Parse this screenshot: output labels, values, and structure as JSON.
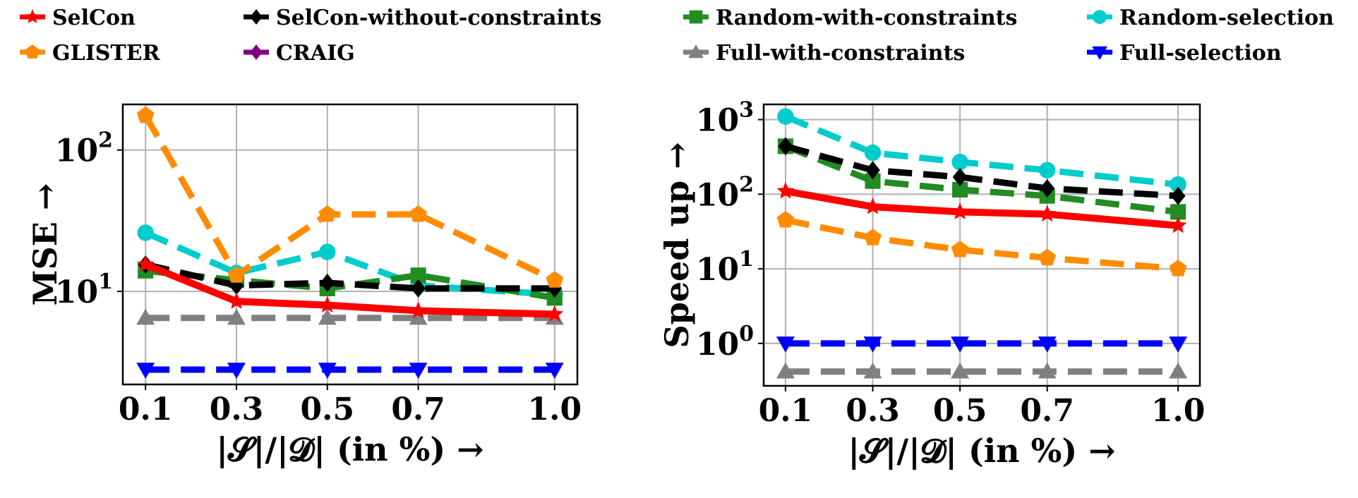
{
  "legend": [
    {
      "key": "selcon",
      "label": "SelCon",
      "color": "#ff0000",
      "marker": "star",
      "dash": "solid"
    },
    {
      "key": "selcon_nc",
      "label": "SelCon-without-constraints",
      "color": "#000000",
      "marker": "diamond",
      "dash": "dashed"
    },
    {
      "key": "random_c",
      "label": "Random-with-constraints",
      "color": "#228b22",
      "marker": "square",
      "dash": "dashed"
    },
    {
      "key": "random",
      "label": "Random-selection",
      "color": "#00cccc",
      "marker": "circle",
      "dash": "dashed"
    },
    {
      "key": "glister",
      "label": "GLISTER",
      "color": "#ff8c00",
      "marker": "pentagon",
      "dash": "dashed"
    },
    {
      "key": "craig",
      "label": "CRAIG",
      "color": "#800080",
      "marker": "diamond",
      "dash": "dashed"
    },
    {
      "key": "full_c",
      "label": "Full-with-constraints",
      "color": "#808080",
      "marker": "triangle-up",
      "dash": "dashed"
    },
    {
      "key": "full",
      "label": "Full-selection",
      "color": "#0000ff",
      "marker": "triangle-down",
      "dash": "dashed"
    }
  ],
  "chart_data": [
    {
      "type": "line",
      "ylabel": "MSE →",
      "xlabel": "|𝓢|/|𝓓| (in %) →",
      "yscale": "log",
      "x": [
        0.1,
        0.3,
        0.5,
        0.7,
        1.0
      ],
      "xticks": [
        "0.1",
        "0.3",
        "0.5",
        "0.7",
        "1.0"
      ],
      "xlim": [
        0.05,
        1.05
      ],
      "ylim": [
        2.2,
        210
      ],
      "yticks": [
        {
          "value": 10,
          "base": "10",
          "exp": "1"
        },
        {
          "value": 100,
          "base": "10",
          "exp": "2"
        }
      ],
      "grid": true,
      "series": [
        {
          "key": "glister",
          "values": [
            175,
            13,
            35,
            35,
            12
          ]
        },
        {
          "key": "random",
          "values": [
            26,
            13.5,
            19,
            11,
            9.5
          ]
        },
        {
          "key": "random_c",
          "values": [
            14,
            12,
            10.5,
            13,
            9
          ]
        },
        {
          "key": "selcon_nc",
          "values": [
            15.5,
            11,
            11.5,
            10.5,
            10.5
          ]
        },
        {
          "key": "full_c",
          "values": [
            6.5,
            6.5,
            6.5,
            6.5,
            6.5
          ]
        },
        {
          "key": "full",
          "values": [
            2.8,
            2.8,
            2.8,
            2.8,
            2.8
          ]
        },
        {
          "key": "selcon",
          "values": [
            15.5,
            8.5,
            8,
            7.3,
            6.9
          ]
        }
      ]
    },
    {
      "type": "line",
      "ylabel": "Speed up →",
      "xlabel": "|𝓢|/|𝓓| (in %) →",
      "yscale": "log",
      "x": [
        0.1,
        0.3,
        0.5,
        0.7,
        1.0
      ],
      "xticks": [
        "0.1",
        "0.3",
        "0.5",
        "0.7",
        "1.0"
      ],
      "xlim": [
        0.05,
        1.05
      ],
      "ylim": [
        0.27,
        1600
      ],
      "yticks": [
        {
          "value": 1,
          "base": "10",
          "exp": "0"
        },
        {
          "value": 10,
          "base": "10",
          "exp": "1"
        },
        {
          "value": 100,
          "base": "10",
          "exp": "2"
        },
        {
          "value": 1000,
          "base": "10",
          "exp": "3"
        }
      ],
      "grid": true,
      "series": [
        {
          "key": "random",
          "values": [
            1100,
            360,
            270,
            210,
            135
          ]
        },
        {
          "key": "random_c",
          "values": [
            440,
            150,
            115,
            95,
            58
          ]
        },
        {
          "key": "selcon_nc",
          "values": [
            440,
            210,
            170,
            120,
            95
          ]
        },
        {
          "key": "glister",
          "values": [
            45,
            26,
            18,
            14,
            10
          ]
        },
        {
          "key": "full",
          "values": [
            1,
            1,
            1,
            1,
            1
          ]
        },
        {
          "key": "full_c",
          "values": [
            0.42,
            0.42,
            0.42,
            0.42,
            0.42
          ]
        },
        {
          "key": "selcon",
          "values": [
            110,
            68,
            58,
            54,
            38
          ]
        }
      ]
    }
  ]
}
